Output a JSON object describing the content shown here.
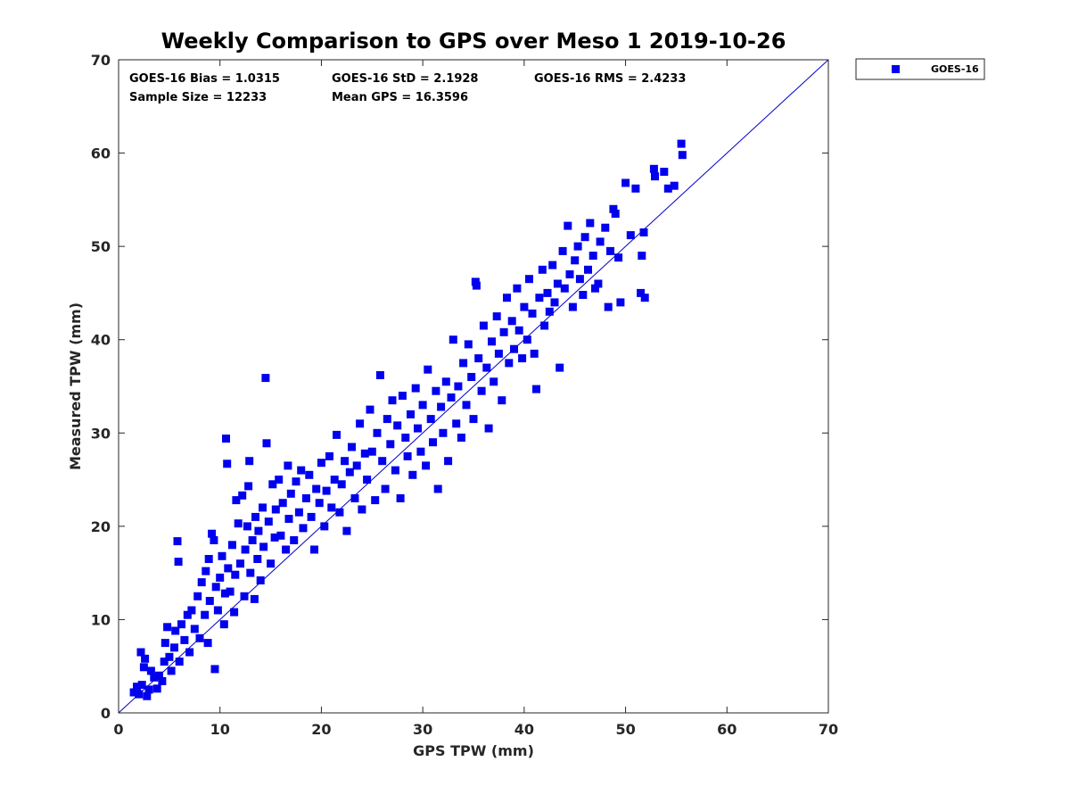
{
  "chart_data": {
    "type": "scatter",
    "title": "Weekly Comparison to GPS over Meso 1 2019-10-26",
    "xlabel": "GPS TPW (mm)",
    "ylabel": "Measured TPW (mm)",
    "xlim": [
      0,
      70
    ],
    "ylim": [
      0,
      70
    ],
    "xticks": [
      "0",
      "10",
      "20",
      "30",
      "40",
      "50",
      "60",
      "70"
    ],
    "yticks": [
      "0",
      "10",
      "20",
      "30",
      "40",
      "50",
      "60",
      "70"
    ],
    "grid": false,
    "legend_position": "outside-top-right",
    "stats": {
      "bias": "GOES-16 Bias = 1.0315",
      "std": "GOES-16 StD = 2.1928",
      "rms": "GOES-16 RMS = 2.4233",
      "sample_size": "Sample Size = 12233",
      "mean_gps": "Mean GPS = 16.3596"
    },
    "reference_line": {
      "from": [
        0,
        0
      ],
      "to": [
        70,
        70
      ]
    },
    "series": [
      {
        "name": "GOES-16",
        "color": "#0000ee",
        "marker": "square",
        "points": [
          [
            1.5,
            2.2
          ],
          [
            1.8,
            2.8
          ],
          [
            2.0,
            2.0
          ],
          [
            2.3,
            3.0
          ],
          [
            2.2,
            6.5
          ],
          [
            2.5,
            4.9
          ],
          [
            2.6,
            5.8
          ],
          [
            2.8,
            1.8
          ],
          [
            3.0,
            2.5
          ],
          [
            3.2,
            4.5
          ],
          [
            3.5,
            3.8
          ],
          [
            3.8,
            2.6
          ],
          [
            4.0,
            4.0
          ],
          [
            4.3,
            3.4
          ],
          [
            4.5,
            5.5
          ],
          [
            4.6,
            7.5
          ],
          [
            4.8,
            9.2
          ],
          [
            5.0,
            6.0
          ],
          [
            5.2,
            4.5
          ],
          [
            5.5,
            7.0
          ],
          [
            5.6,
            8.8
          ],
          [
            5.8,
            18.4
          ],
          [
            5.9,
            16.2
          ],
          [
            6.0,
            5.5
          ],
          [
            6.2,
            9.5
          ],
          [
            6.5,
            7.8
          ],
          [
            6.8,
            10.5
          ],
          [
            7.0,
            6.5
          ],
          [
            7.2,
            11.0
          ],
          [
            7.5,
            9.0
          ],
          [
            7.8,
            12.5
          ],
          [
            8.0,
            8.0
          ],
          [
            8.2,
            14.0
          ],
          [
            8.5,
            10.5
          ],
          [
            8.6,
            15.2
          ],
          [
            8.8,
            7.5
          ],
          [
            8.9,
            16.5
          ],
          [
            9.0,
            12.0
          ],
          [
            9.2,
            19.2
          ],
          [
            9.4,
            18.5
          ],
          [
            9.5,
            4.7
          ],
          [
            9.6,
            13.5
          ],
          [
            9.8,
            11.0
          ],
          [
            10.0,
            14.5
          ],
          [
            10.2,
            16.8
          ],
          [
            10.4,
            9.5
          ],
          [
            10.5,
            12.8
          ],
          [
            10.6,
            29.4
          ],
          [
            10.7,
            26.7
          ],
          [
            10.8,
            15.5
          ],
          [
            11.0,
            13.0
          ],
          [
            11.2,
            18.0
          ],
          [
            11.4,
            10.8
          ],
          [
            11.5,
            14.8
          ],
          [
            11.6,
            22.8
          ],
          [
            11.8,
            20.3
          ],
          [
            12.0,
            16.0
          ],
          [
            12.2,
            23.3
          ],
          [
            12.4,
            12.5
          ],
          [
            12.5,
            17.5
          ],
          [
            12.7,
            20.0
          ],
          [
            12.8,
            24.3
          ],
          [
            12.9,
            27.0
          ],
          [
            13.0,
            15.0
          ],
          [
            13.2,
            18.5
          ],
          [
            13.4,
            12.2
          ],
          [
            13.5,
            21.0
          ],
          [
            13.7,
            16.5
          ],
          [
            13.8,
            19.5
          ],
          [
            14.0,
            14.2
          ],
          [
            14.2,
            22.0
          ],
          [
            14.3,
            17.8
          ],
          [
            14.5,
            35.9
          ],
          [
            14.6,
            28.9
          ],
          [
            14.8,
            20.5
          ],
          [
            15.0,
            16.0
          ],
          [
            15.2,
            24.5
          ],
          [
            15.4,
            18.8
          ],
          [
            15.5,
            21.8
          ],
          [
            15.8,
            25.0
          ],
          [
            16.0,
            19.0
          ],
          [
            16.2,
            22.5
          ],
          [
            16.5,
            17.5
          ],
          [
            16.7,
            26.5
          ],
          [
            16.8,
            20.8
          ],
          [
            17.0,
            23.5
          ],
          [
            17.3,
            18.5
          ],
          [
            17.5,
            24.8
          ],
          [
            17.8,
            21.5
          ],
          [
            18.0,
            26.0
          ],
          [
            18.2,
            19.8
          ],
          [
            18.5,
            23.0
          ],
          [
            18.8,
            25.5
          ],
          [
            19.0,
            21.0
          ],
          [
            19.3,
            17.5
          ],
          [
            19.5,
            24.0
          ],
          [
            19.8,
            22.5
          ],
          [
            20.0,
            26.8
          ],
          [
            20.3,
            20.0
          ],
          [
            20.5,
            23.8
          ],
          [
            20.8,
            27.5
          ],
          [
            21.0,
            22.0
          ],
          [
            21.3,
            25.0
          ],
          [
            21.5,
            29.8
          ],
          [
            21.8,
            21.5
          ],
          [
            22.0,
            24.5
          ],
          [
            22.3,
            27.0
          ],
          [
            22.5,
            19.5
          ],
          [
            22.8,
            25.8
          ],
          [
            23.0,
            28.5
          ],
          [
            23.3,
            23.0
          ],
          [
            23.5,
            26.5
          ],
          [
            23.8,
            31.0
          ],
          [
            24.0,
            21.8
          ],
          [
            24.3,
            27.8
          ],
          [
            24.5,
            25.0
          ],
          [
            24.8,
            32.5
          ],
          [
            25.0,
            28.0
          ],
          [
            25.3,
            22.8
          ],
          [
            25.5,
            30.0
          ],
          [
            25.8,
            36.2
          ],
          [
            26.0,
            27.0
          ],
          [
            26.3,
            24.0
          ],
          [
            26.5,
            31.5
          ],
          [
            26.8,
            28.8
          ],
          [
            27.0,
            33.5
          ],
          [
            27.3,
            26.0
          ],
          [
            27.5,
            30.8
          ],
          [
            27.8,
            23.0
          ],
          [
            28.0,
            34.0
          ],
          [
            28.3,
            29.5
          ],
          [
            28.5,
            27.5
          ],
          [
            28.8,
            32.0
          ],
          [
            29.0,
            25.5
          ],
          [
            29.3,
            34.8
          ],
          [
            29.5,
            30.5
          ],
          [
            29.8,
            28.0
          ],
          [
            30.0,
            33.0
          ],
          [
            30.3,
            26.5
          ],
          [
            30.5,
            36.8
          ],
          [
            30.8,
            31.5
          ],
          [
            31.0,
            29.0
          ],
          [
            31.3,
            34.5
          ],
          [
            31.5,
            24.0
          ],
          [
            31.8,
            32.8
          ],
          [
            32.0,
            30.0
          ],
          [
            32.3,
            35.5
          ],
          [
            32.5,
            27.0
          ],
          [
            32.8,
            33.8
          ],
          [
            33.0,
            40.0
          ],
          [
            33.3,
            31.0
          ],
          [
            33.5,
            35.0
          ],
          [
            33.8,
            29.5
          ],
          [
            34.0,
            37.5
          ],
          [
            34.3,
            33.0
          ],
          [
            34.5,
            39.5
          ],
          [
            34.8,
            36.0
          ],
          [
            35.0,
            31.5
          ],
          [
            35.2,
            46.2
          ],
          [
            35.3,
            45.8
          ],
          [
            35.5,
            38.0
          ],
          [
            35.8,
            34.5
          ],
          [
            36.0,
            41.5
          ],
          [
            36.3,
            37.0
          ],
          [
            36.5,
            30.5
          ],
          [
            36.8,
            39.8
          ],
          [
            37.0,
            35.5
          ],
          [
            37.3,
            42.5
          ],
          [
            37.5,
            38.5
          ],
          [
            37.8,
            33.5
          ],
          [
            38.0,
            40.8
          ],
          [
            38.3,
            44.5
          ],
          [
            38.5,
            37.5
          ],
          [
            38.8,
            42.0
          ],
          [
            39.0,
            39.0
          ],
          [
            39.3,
            45.5
          ],
          [
            39.5,
            41.0
          ],
          [
            39.8,
            38.0
          ],
          [
            40.0,
            43.5
          ],
          [
            40.3,
            40.0
          ],
          [
            40.5,
            46.5
          ],
          [
            40.8,
            42.8
          ],
          [
            41.0,
            38.5
          ],
          [
            41.2,
            34.7
          ],
          [
            41.5,
            44.5
          ],
          [
            41.8,
            47.5
          ],
          [
            42.0,
            41.5
          ],
          [
            42.3,
            45.0
          ],
          [
            42.5,
            43.0
          ],
          [
            42.8,
            48.0
          ],
          [
            43.0,
            44.0
          ],
          [
            43.3,
            46.0
          ],
          [
            43.5,
            37.0
          ],
          [
            43.8,
            49.5
          ],
          [
            44.0,
            45.5
          ],
          [
            44.3,
            52.2
          ],
          [
            44.5,
            47.0
          ],
          [
            44.8,
            43.5
          ],
          [
            45.0,
            48.5
          ],
          [
            45.3,
            50.0
          ],
          [
            45.5,
            46.5
          ],
          [
            45.8,
            44.8
          ],
          [
            46.0,
            51.0
          ],
          [
            46.3,
            47.5
          ],
          [
            46.5,
            52.5
          ],
          [
            46.8,
            49.0
          ],
          [
            47.0,
            45.5
          ],
          [
            47.3,
            46.0
          ],
          [
            47.5,
            50.5
          ],
          [
            48.0,
            52.0
          ],
          [
            48.3,
            43.5
          ],
          [
            48.5,
            49.5
          ],
          [
            48.8,
            54.0
          ],
          [
            49.0,
            53.5
          ],
          [
            49.3,
            48.8
          ],
          [
            49.5,
            44.0
          ],
          [
            50.0,
            56.8
          ],
          [
            50.5,
            51.2
          ],
          [
            51.0,
            56.2
          ],
          [
            51.5,
            45.0
          ],
          [
            51.8,
            51.5
          ],
          [
            51.9,
            44.5
          ],
          [
            51.6,
            49.0
          ],
          [
            52.8,
            58.3
          ],
          [
            52.9,
            57.5
          ],
          [
            53.8,
            58.0
          ],
          [
            54.2,
            56.2
          ],
          [
            54.8,
            56.5
          ],
          [
            55.5,
            61.0
          ],
          [
            55.6,
            59.8
          ]
        ]
      }
    ]
  }
}
